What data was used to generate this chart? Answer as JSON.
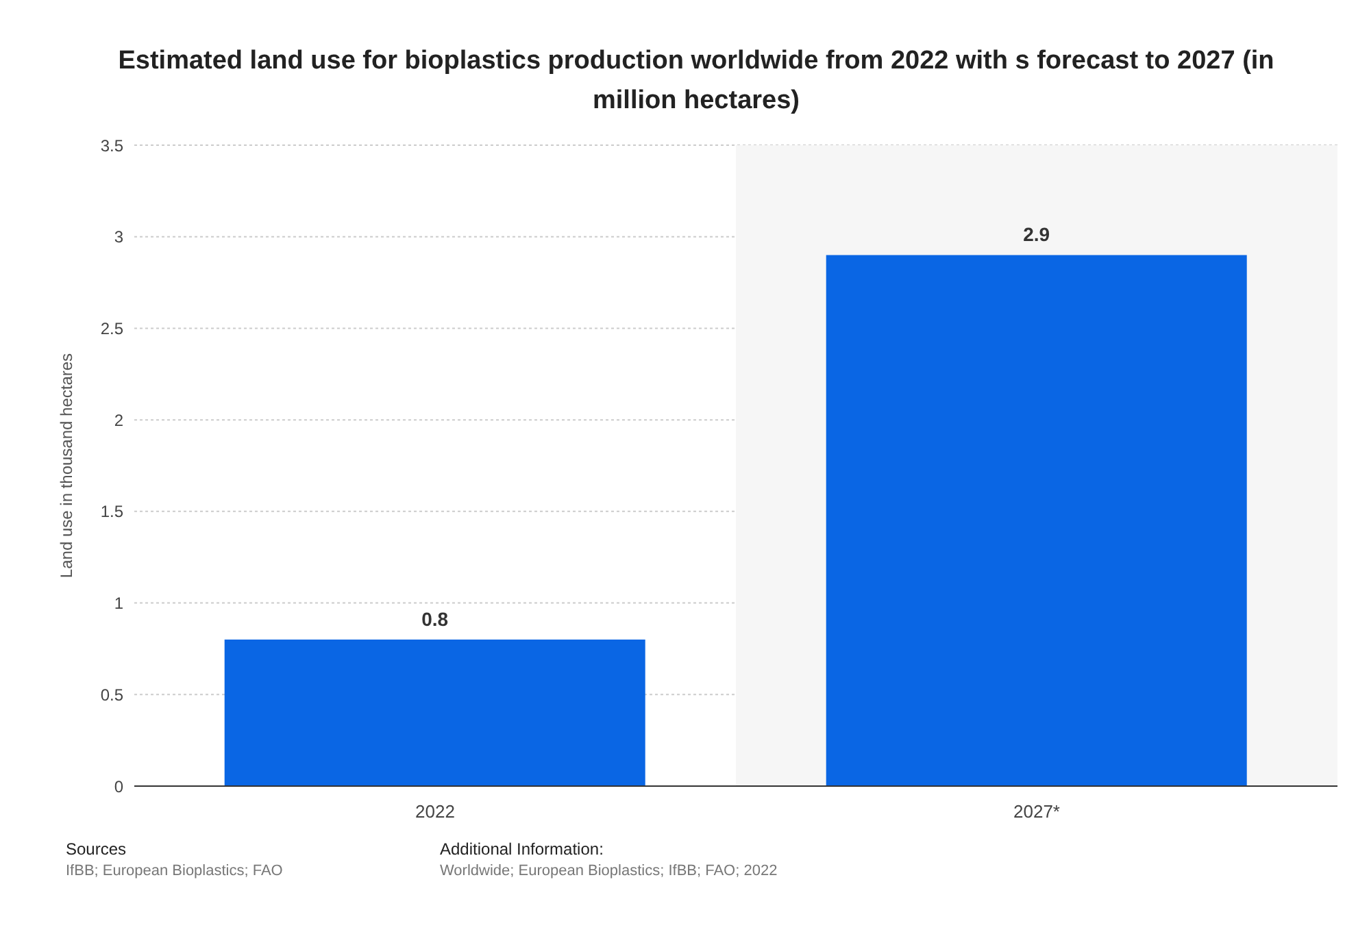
{
  "chart_data": {
    "type": "bar",
    "title": "Estimated land use for bioplastics production worldwide from 2022 with s forecast to 2027 (in million hectares)",
    "ylabel": "Land use in thousand hectares",
    "categories": [
      "2022",
      "2027*"
    ],
    "values": [
      0.8,
      2.9
    ],
    "color": "#0a66e4",
    "data_labels": true,
    "ylim": [
      0,
      3.5
    ],
    "yticks": [
      0,
      0.5,
      1,
      1.5,
      2,
      2.5,
      3,
      3.5
    ],
    "grid": "y",
    "bands": [
      {
        "axis": "x",
        "from": "2027*",
        "to": "2027*",
        "color": "#f6f6f6"
      }
    ],
    "annotations": [
      "Sources",
      "IfBB; European Bioplastics; FAO",
      "Additional Information:",
      "Worldwide; European Bioplastics; IfBB; FAO; 2022"
    ]
  }
}
